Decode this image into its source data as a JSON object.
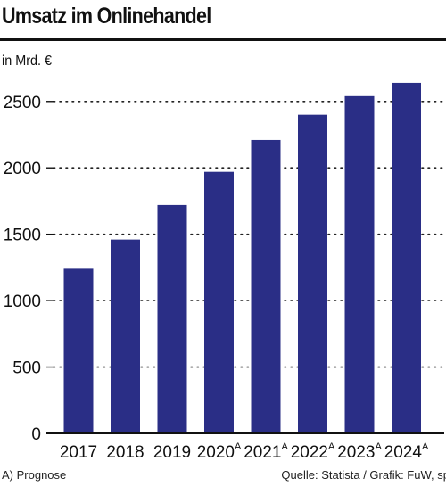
{
  "chart_data": {
    "type": "bar",
    "title": "Umsatz im Onlinehandel",
    "unit_label": "in Mrd. €",
    "categories": [
      "2017",
      "2018",
      "2019",
      "2020",
      "2021",
      "2022",
      "2023",
      "2024"
    ],
    "forecast_marks": [
      "",
      "",
      "",
      "A",
      "A",
      "A",
      "A",
      "A"
    ],
    "values": [
      1240,
      1460,
      1720,
      1970,
      2210,
      2400,
      2540,
      2640
    ],
    "ylim": [
      0,
      2700
    ],
    "yticks": [
      0,
      500,
      1000,
      1500,
      2000,
      2500
    ],
    "grid": true,
    "bar_color": "#2a2e86"
  },
  "footnote": "A) Prognose",
  "source": "Quelle: Statista / Grafik: FuW, sp"
}
